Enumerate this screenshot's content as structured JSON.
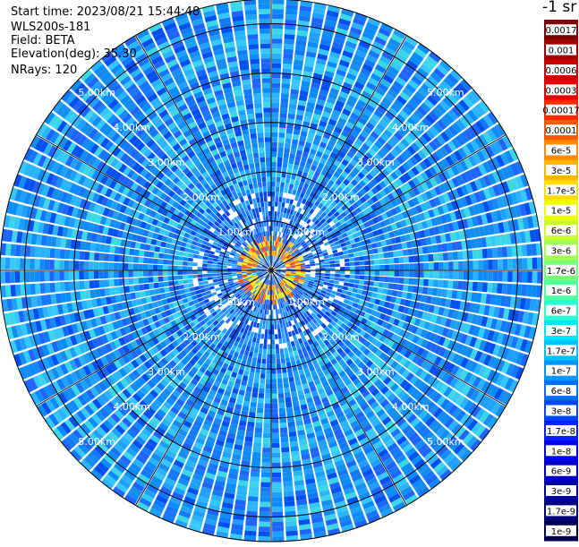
{
  "header": {
    "start_time": "Start time: 2023/08/21 15:44:48",
    "instrument": "WLS200s-181",
    "field": "Field: BETA",
    "elevation": "Elevation(deg): 35.30",
    "nrays": "NRays: 120"
  },
  "colorbar": {
    "unit_label": "-1 sr",
    "labels": [
      "0.0017",
      "0.001",
      "0.0006",
      "0.0003",
      "0.00017",
      "0.0001",
      "6e-5",
      "3e-5",
      "1.7e-5",
      "1e-5",
      "6e-6",
      "3e-6",
      "1.7e-6",
      "1e-6",
      "6e-7",
      "3e-7",
      "1.7e-7",
      "1e-7",
      "6e-8",
      "3e-8",
      "1.7e-8",
      "1e-8",
      "6e-9",
      "3e-9",
      "1.7e-9",
      "1e-9"
    ],
    "colors": [
      "#7f0000",
      "#a50000",
      "#c80000",
      "#e60000",
      "#ff2800",
      "#ff5a00",
      "#ff8c00",
      "#ffb400",
      "#ffdc00",
      "#f0ff00",
      "#c8ff28",
      "#a0ff50",
      "#78ff78",
      "#50ffa0",
      "#28ffd0",
      "#00e6ff",
      "#00c0ff",
      "#0096ff",
      "#006eff",
      "#0046ff",
      "#0020ff",
      "#0000f0",
      "#0000c8",
      "#0000a0",
      "#00007a",
      "#000050"
    ]
  },
  "chart_data": {
    "type": "heatmap",
    "projection": "polar (PPI scan)",
    "field": "BETA",
    "range_rings_km": [
      1,
      2,
      3,
      4,
      5
    ],
    "ring_labels": [
      "1.00km",
      "2.00km",
      "3.00km",
      "4.00km",
      "5.00km"
    ],
    "max_range_km": 5.5,
    "n_rays": 120,
    "value_range": [
      1e-09,
      0.0017
    ],
    "color_scale": "log",
    "notes_visible": "background mostly 1e-8 to 3e-8 (blue), high backscatter 1e-5 to 6e-5 ring near center (0.3-0.6 km)"
  }
}
